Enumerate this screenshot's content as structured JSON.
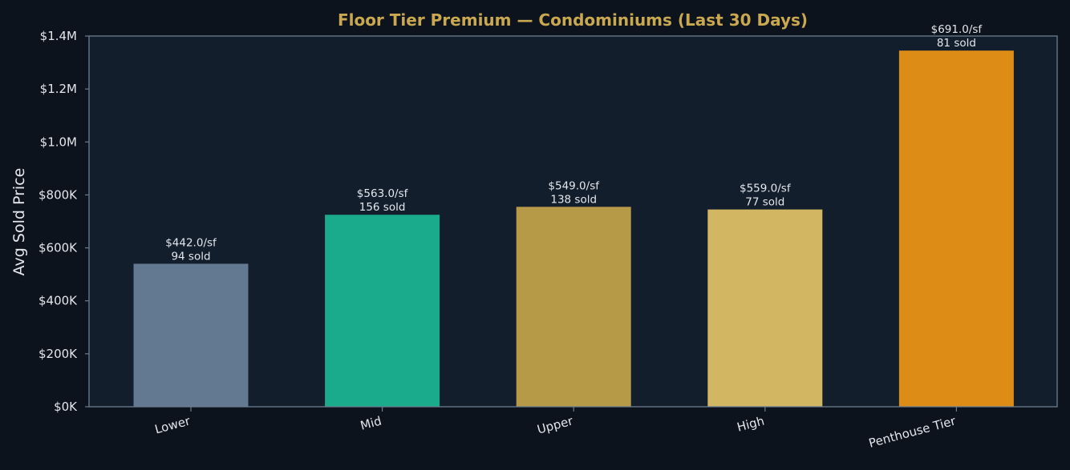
{
  "chart_data": {
    "type": "bar",
    "title": "Floor Tier Premium — Condominiums (Last 30 Days)",
    "xlabel": "",
    "ylabel": "Avg Sold Price",
    "ylim": [
      0,
      1400000
    ],
    "yticks": [
      0,
      200000,
      400000,
      600000,
      800000,
      1000000,
      1200000,
      1400000
    ],
    "ytick_labels": [
      "$0K",
      "$200K",
      "$400K",
      "$600K",
      "$800K",
      "$1.0M",
      "$1.2M",
      "$1.4M"
    ],
    "categories": [
      "Lower",
      "Mid",
      "Upper",
      "High",
      "Penthouse Tier"
    ],
    "values": [
      540000,
      725000,
      755000,
      745000,
      1345000
    ],
    "colors": [
      "#637891",
      "#1aab8c",
      "#b69a48",
      "#d2b662",
      "#dd8c16"
    ],
    "price_per_sf_labels": [
      "$442.0/sf",
      "$563.0/sf",
      "$549.0/sf",
      "$559.0/sf",
      "$691.0/sf"
    ],
    "sold_labels": [
      "94 sold",
      "156 sold",
      "138 sold",
      "77 sold",
      "81 sold"
    ],
    "grid": false,
    "legend": "none"
  },
  "style": {
    "background": "#0c131c",
    "plot_background": "#131e2d",
    "frame_color": "#6b7d90",
    "title_color": "#c9a84f",
    "text_color": "#e3e7ec"
  }
}
